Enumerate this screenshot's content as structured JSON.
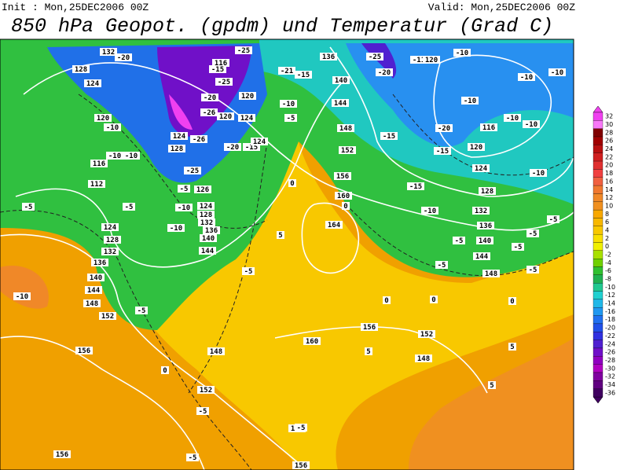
{
  "header": {
    "init": "Init : Mon,25DEC2006 00Z",
    "valid": "Valid: Mon,25DEC2006 00Z",
    "title": "850 hPa Geopot. (gpdm) und Temperatur (Grad C)"
  },
  "colorbar": {
    "levels": [
      32,
      30,
      28,
      26,
      24,
      22,
      20,
      18,
      16,
      14,
      12,
      10,
      8,
      6,
      4,
      2,
      0,
      -2,
      -4,
      -6,
      -8,
      -10,
      -12,
      -14,
      -16,
      -18,
      -20,
      -22,
      -24,
      -26,
      -28,
      -30,
      -32,
      -34,
      -36
    ],
    "colors": [
      "#f040f0",
      "#f878f8",
      "#800000",
      "#a00000",
      "#b81010",
      "#d02020",
      "#e03030",
      "#f04040",
      "#f06040",
      "#f07830",
      "#f08828",
      "#f09020",
      "#f8a800",
      "#f8b800",
      "#f8c800",
      "#f8e000",
      "#f0f000",
      "#a8e000",
      "#70d000",
      "#30c030",
      "#20b050",
      "#20c890",
      "#20d0d0",
      "#20b8e8",
      "#2098f0",
      "#2070f0",
      "#2050e8",
      "#3030e0",
      "#5020d0",
      "#7010c8",
      "#9000c0",
      "#b000c0",
      "#8000a0",
      "#600080",
      "#400060"
    ]
  },
  "map_labels": [
    "132",
    "-20",
    "128",
    "124",
    "120",
    "-10",
    "116",
    "-10",
    "-10",
    "112",
    "-5",
    "-5",
    "124",
    "128",
    "132",
    "136",
    "140",
    "144",
    "148",
    "152",
    "156",
    "-10",
    "-5",
    "148",
    "0",
    "152",
    "-5",
    "156",
    "156",
    "156",
    "-5",
    "-5",
    "-25",
    "116",
    "-15",
    "-25",
    "-20",
    "120",
    "-26",
    "120",
    "124",
    "-26",
    "124",
    "128",
    "-20",
    "-15",
    "124",
    "-25",
    "126",
    "-5",
    "-10",
    "124",
    "128",
    "132",
    "136",
    "140",
    "144",
    "-10",
    "-5",
    "0",
    "5",
    "160",
    "0",
    "164",
    "136",
    "-25",
    "-20",
    "140",
    "-15",
    "-21",
    "144",
    "-10",
    "-5",
    "148",
    "152",
    "156",
    "-15",
    "-20",
    "-15",
    "-15",
    "-10",
    "116",
    "120",
    "124",
    "128",
    "132",
    "136",
    "140",
    "144",
    "148",
    "-5",
    "-10",
    "-10",
    "-10",
    "-10",
    "-10",
    "-10",
    "-10",
    "-11",
    "120",
    "-5",
    "0",
    "0",
    "156",
    "160",
    "152",
    "148",
    "5",
    "5",
    "0",
    "5",
    "-5",
    "-5",
    "-5",
    "-5"
  ]
}
